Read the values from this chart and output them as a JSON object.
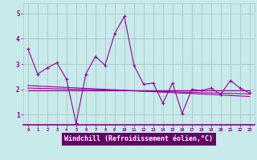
{
  "background_color": "#c8eaea",
  "plot_bg_color": "#c8eaea",
  "line_color": "#990099",
  "grid_color": "#aacccc",
  "xlabel": "Windchill (Refroidissement éolien,°C)",
  "xlabel_fontsize": 6.0,
  "xlabel_bg": "#660066",
  "xlabel_fg": "#ffffff",
  "tick_color": "#880088",
  "xtick_labels": [
    "0",
    "1",
    "2",
    "3",
    "4",
    "5",
    "6",
    "7",
    "8",
    "9",
    "10",
    "11",
    "12",
    "13",
    "14",
    "15",
    "16",
    "17",
    "18",
    "19",
    "20",
    "21",
    "22",
    "23"
  ],
  "ytick_labels": [
    "1",
    "2",
    "3",
    "4",
    "5"
  ],
  "ylim": [
    0.6,
    5.4
  ],
  "xlim": [
    -0.5,
    23.5
  ],
  "series1_x": [
    0,
    1,
    2,
    3,
    4,
    5,
    6,
    7,
    8,
    9,
    10,
    11,
    12,
    13,
    14,
    15,
    16,
    17,
    18,
    19,
    20,
    21,
    22,
    23
  ],
  "series1_y": [
    3.6,
    2.6,
    2.85,
    3.05,
    2.4,
    0.65,
    2.6,
    3.3,
    2.95,
    4.2,
    4.88,
    2.95,
    2.2,
    2.25,
    1.45,
    2.25,
    1.05,
    2.0,
    1.95,
    2.05,
    1.8,
    2.35,
    2.05,
    1.85
  ],
  "series2_x": [
    0,
    23
  ],
  "series2_y": [
    1.95,
    1.95
  ],
  "series3_x": [
    0,
    23
  ],
  "series3_y": [
    2.15,
    1.72
  ],
  "series4_x": [
    0,
    23
  ],
  "series4_y": [
    2.05,
    1.82
  ]
}
